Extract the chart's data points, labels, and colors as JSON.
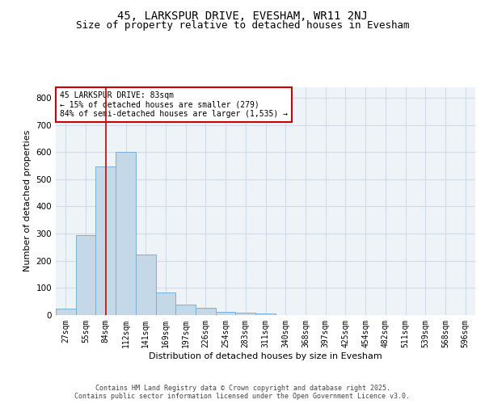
{
  "title": "45, LARKSPUR DRIVE, EVESHAM, WR11 2NJ",
  "subtitle": "Size of property relative to detached houses in Evesham",
  "xlabel": "Distribution of detached houses by size in Evesham",
  "ylabel": "Number of detached properties",
  "categories": [
    "27sqm",
    "55sqm",
    "84sqm",
    "112sqm",
    "141sqm",
    "169sqm",
    "197sqm",
    "226sqm",
    "254sqm",
    "283sqm",
    "311sqm",
    "340sqm",
    "368sqm",
    "397sqm",
    "425sqm",
    "454sqm",
    "482sqm",
    "511sqm",
    "539sqm",
    "568sqm",
    "596sqm"
  ],
  "values": [
    25,
    293,
    547,
    600,
    224,
    82,
    39,
    26,
    11,
    8,
    5,
    0,
    0,
    0,
    0,
    0,
    0,
    0,
    0,
    0,
    0
  ],
  "bar_color": "#c5d8e8",
  "bar_edge_color": "#7bafd4",
  "grid_color": "#d0dce8",
  "background_color": "#eef3f8",
  "vline_x": 2.0,
  "vline_color": "#cc0000",
  "annotation_text": "45 LARKSPUR DRIVE: 83sqm\n← 15% of detached houses are smaller (279)\n84% of semi-detached houses are larger (1,535) →",
  "annotation_box_color": "#cc0000",
  "ylim": [
    0,
    840
  ],
  "yticks": [
    0,
    100,
    200,
    300,
    400,
    500,
    600,
    700,
    800
  ],
  "footer": "Contains HM Land Registry data © Crown copyright and database right 2025.\nContains public sector information licensed under the Open Government Licence v3.0.",
  "title_fontsize": 10,
  "subtitle_fontsize": 9,
  "label_fontsize": 8,
  "tick_fontsize": 7,
  "footer_fontsize": 6,
  "ann_fontsize": 7
}
